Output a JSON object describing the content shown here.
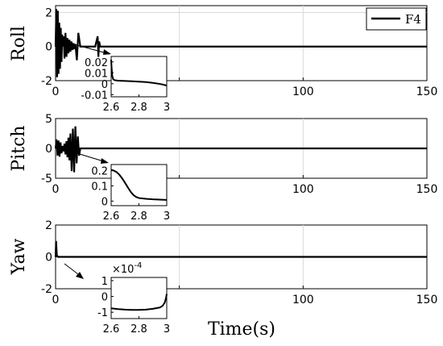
{
  "chart_data": [
    {
      "type": "line",
      "ylabel": "Roll",
      "xlim": [
        0,
        150
      ],
      "ylim": [
        -2,
        2.4
      ],
      "x_ticks": [
        0,
        50,
        100,
        150
      ],
      "y_ticks": [
        -2,
        0,
        2
      ],
      "x_tick_labels": [
        "0",
        "",
        "100",
        "150"
      ],
      "y_tick_labels": [
        "-2",
        "0",
        "2"
      ],
      "grid": true,
      "legend": {
        "entries": [
          "F4"
        ],
        "placement": "top-right"
      },
      "series": [
        {
          "name": "F4",
          "color": "#000000",
          "x": [
            0,
            0.3,
            0.6,
            0.9,
            1.2,
            1.5,
            1.8,
            2.1,
            2.4,
            2.7,
            3.0,
            3.3,
            3.6,
            4.0,
            4.4,
            4.8,
            5.2,
            5.6,
            6.0,
            6.4,
            6.8,
            7.2,
            7.6,
            8.0,
            8.6,
            9.2,
            10.0,
            12.0,
            16.0,
            17.0,
            17.3,
            17.6,
            18.0,
            20.0,
            150
          ],
          "y": [
            0,
            2.2,
            -1.8,
            2.1,
            -1.6,
            1.4,
            -1.3,
            1.1,
            -0.9,
            0.7,
            0,
            0.6,
            -0.7,
            0.8,
            -0.6,
            0.5,
            -0.4,
            0.4,
            -0.3,
            0.3,
            -0.2,
            0.2,
            -0.15,
            0.15,
            -0.8,
            0.8,
            0,
            0,
            0,
            0.6,
            -0.6,
            0.3,
            0,
            0,
            0
          ]
        }
      ],
      "inset": {
        "xlim": [
          2.6,
          3
        ],
        "ylim": [
          -0.012,
          0.025
        ],
        "x_ticks": [
          2.6,
          2.8,
          3
        ],
        "x_tick_labels": [
          "2.6",
          "2.8",
          "3"
        ],
        "y_ticks": [
          0.02,
          0.01,
          0,
          -0.01
        ],
        "y_tick_labels": [
          "0.02",
          "0.01",
          "0",
          "-0.01"
        ],
        "x": [
          2.6,
          2.603,
          2.608,
          2.615,
          2.625,
          2.65,
          2.7,
          2.75,
          2.8,
          2.85,
          2.9,
          2.95,
          2.98,
          3.0
        ],
        "y": [
          0.022,
          0.015,
          0.007,
          0.004,
          0.0032,
          0.0028,
          0.0025,
          0.0022,
          0.0019,
          0.0015,
          0.0008,
          -0.0002,
          -0.001,
          -0.0018
        ]
      }
    },
    {
      "type": "line",
      "ylabel": "Pitch",
      "xlim": [
        0,
        150
      ],
      "ylim": [
        -5,
        5
      ],
      "x_ticks": [
        0,
        50,
        100,
        150
      ],
      "y_ticks": [
        -5,
        0,
        5
      ],
      "x_tick_labels": [
        "0",
        "",
        "100",
        "150"
      ],
      "y_tick_labels": [
        "-5",
        "0",
        "5"
      ],
      "grid": true,
      "series": [
        {
          "name": "F4",
          "color": "#000000",
          "x": [
            0,
            0.4,
            0.8,
            1.2,
            1.6,
            2.0,
            2.4,
            2.8,
            3.2,
            3.6,
            4.0,
            4.4,
            4.8,
            5.2,
            5.6,
            6.0,
            6.5,
            7.0,
            7.5,
            8.0,
            8.5,
            9.0,
            9.5,
            10.0,
            12.0,
            150
          ],
          "y": [
            0,
            1.5,
            -1.2,
            1.3,
            -1.4,
            1.0,
            -0.8,
            0.4,
            -0.5,
            0.8,
            -1.0,
            1.2,
            -1.5,
            1.8,
            -2.0,
            2.5,
            -3.8,
            3.3,
            -4.0,
            3.7,
            -2.5,
            2.0,
            -1.2,
            0,
            0,
            0
          ]
        }
      ],
      "inset": {
        "xlim": [
          2.6,
          3
        ],
        "ylim": [
          -0.03,
          0.24
        ],
        "x_ticks": [
          2.6,
          2.8,
          3
        ],
        "x_tick_labels": [
          "2.6",
          "2.8",
          "3"
        ],
        "y_ticks": [
          0.2,
          0.1,
          0
        ],
        "y_tick_labels": [
          "0.2",
          "0.1",
          "0"
        ],
        "x": [
          2.6,
          2.62,
          2.64,
          2.66,
          2.68,
          2.7,
          2.72,
          2.74,
          2.76,
          2.78,
          2.8,
          2.85,
          2.9,
          2.95,
          3.0
        ],
        "y": [
          0.205,
          0.2,
          0.19,
          0.172,
          0.148,
          0.12,
          0.09,
          0.062,
          0.04,
          0.027,
          0.02,
          0.015,
          0.012,
          0.01,
          0.008
        ]
      }
    },
    {
      "type": "line",
      "ylabel": "Yaw",
      "xlabel": "Time(s)",
      "xlim": [
        0,
        150
      ],
      "ylim": [
        -2,
        2
      ],
      "x_ticks": [
        0,
        50,
        100,
        150
      ],
      "y_ticks": [
        -2,
        0,
        2
      ],
      "x_tick_labels": [
        "0",
        "",
        "100",
        "150"
      ],
      "y_tick_labels": [
        "-2",
        "0",
        "2"
      ],
      "grid": true,
      "series": [
        {
          "name": "F4",
          "color": "#000000",
          "x": [
            0,
            0.2,
            0.5,
            1.0,
            2.0,
            150
          ],
          "y": [
            0,
            1.0,
            0.1,
            0,
            0,
            0
          ]
        }
      ],
      "inset": {
        "xlim": [
          2.6,
          3
        ],
        "ylim": [
          -1.4,
          1.2
        ],
        "y_exponent": "×10",
        "y_exponent_power": "-4",
        "x_ticks": [
          2.6,
          2.8,
          3
        ],
        "x_tick_labels": [
          "2.6",
          "2.8",
          "3"
        ],
        "y_ticks": [
          1,
          0,
          -1
        ],
        "y_tick_labels": [
          "1",
          "0",
          "-1"
        ],
        "x": [
          2.6,
          2.65,
          2.7,
          2.75,
          2.8,
          2.85,
          2.9,
          2.95,
          2.97,
          2.985,
          2.995,
          3.0
        ],
        "y": [
          -0.75,
          -0.8,
          -0.83,
          -0.85,
          -0.85,
          -0.83,
          -0.78,
          -0.7,
          -0.6,
          -0.4,
          -0.1,
          0.15
        ]
      }
    }
  ]
}
